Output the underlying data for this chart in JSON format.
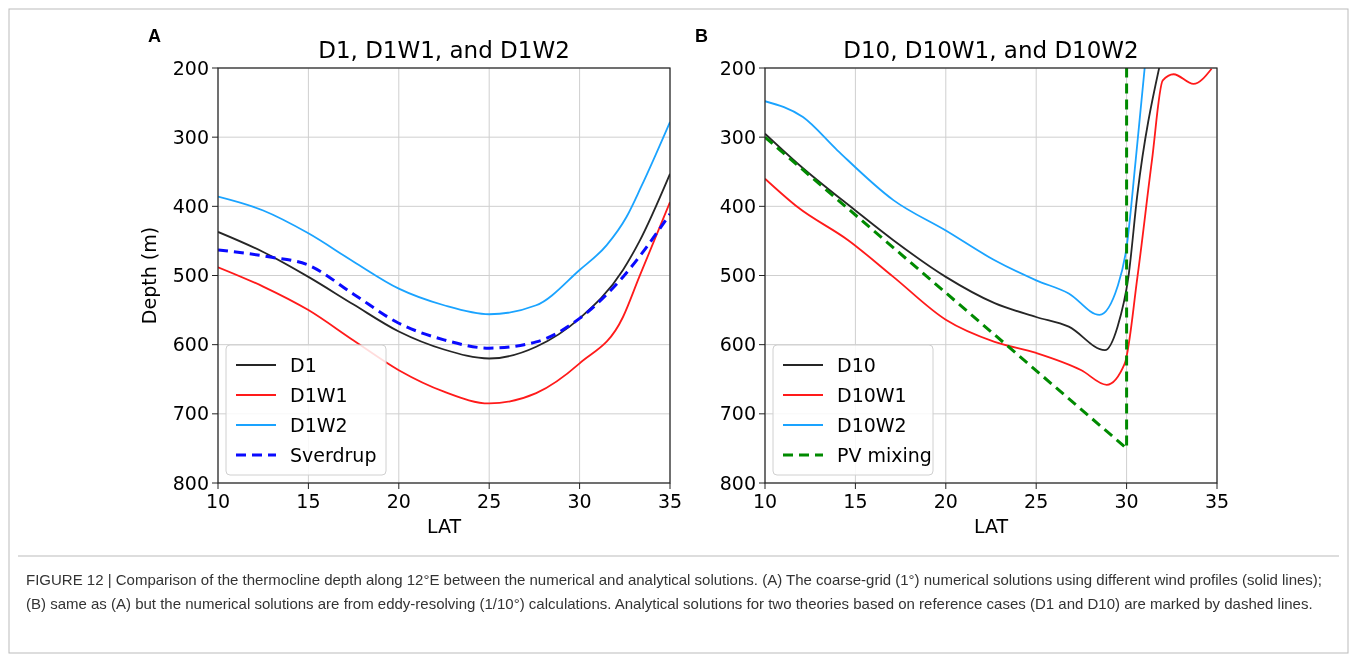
{
  "chart_data": [
    {
      "type": "line",
      "title": "D1, D1W1, and D1W2",
      "xlabel": "LAT",
      "ylabel": "Depth (m)",
      "annotations": [
        "A",
        "FIGURE 12 | Comparison of the thermocline depth along 12°E between the numerical and analytical solutions. (A) The coarse-grid (1°) numerical solutions using different wind profiles (solid lines); (B) same as (A) but the numerical solutions are from eddy-resolving (1/10°) calculations. Analytical solutions for two theories based on reference cases (D1 and D10) are marked by dashed lines."
      ],
      "xlim": [
        10,
        35
      ],
      "xticks": [
        10,
        15,
        20,
        25,
        30,
        35
      ],
      "ylim": [
        800,
        200
      ],
      "yticks": [
        200,
        300,
        400,
        500,
        600,
        700,
        800
      ],
      "grid": true,
      "legend": "bottom left",
      "line_style": "solid",
      "marker": "none",
      "series": [
        {
          "name": "D1",
          "color": "#262626",
          "x": [
            10,
            12.5,
            15,
            17.5,
            20,
            22.5,
            25,
            27.6,
            30,
            32.4,
            33.3,
            35
          ],
          "values": [
            437,
            466,
            502,
            542,
            581,
            607,
            620,
            603,
            562,
            492,
            451,
            353
          ]
        },
        {
          "name": "D1W1",
          "color": "#ff1a1a",
          "x": [
            10,
            12.5,
            15,
            17.5,
            20,
            22.5,
            25,
            27.6,
            30,
            32.4,
            33.3,
            35
          ],
          "values": [
            488,
            516,
            550,
            594,
            637,
            668,
            685,
            670,
            627,
            560,
            502,
            394
          ]
        },
        {
          "name": "D1W2",
          "color": "#1aa3ff",
          "x": [
            10,
            12.5,
            15,
            17.5,
            20,
            22.5,
            25,
            27.6,
            30,
            31.5,
            32.6,
            33.4,
            35
          ],
          "values": [
            386,
            406,
            439,
            480,
            519,
            543,
            556,
            543,
            492,
            456,
            415,
            372,
            278
          ]
        },
        {
          "name": "Sverdrup",
          "color": "#0a0aff",
          "line_style": "dashed",
          "x": [
            10,
            12.8,
            15,
            17.5,
            20,
            22.5,
            25,
            27.6,
            30,
            32.4,
            35
          ],
          "values": [
            463,
            473,
            485,
            527,
            569,
            593,
            605,
            596,
            562,
            502,
            411
          ]
        }
      ]
    },
    {
      "type": "line",
      "title": "D10, D10W1, and D10W2",
      "xlabel": "LAT",
      "annotations": [
        "B"
      ],
      "xlim": [
        10,
        35
      ],
      "xticks": [
        10,
        15,
        20,
        25,
        30,
        35
      ],
      "ylim": [
        800,
        200
      ],
      "yticks": [
        200,
        300,
        400,
        500,
        600,
        700,
        800
      ],
      "grid": true,
      "legend": "bottom left",
      "line_style": "solid",
      "marker": "none",
      "series": [
        {
          "name": "D10",
          "color": "#262626",
          "x": [
            10,
            11.8,
            15,
            17.1,
            20,
            22.7,
            25,
            26.8,
            28.8,
            29.5,
            30.1,
            30.6,
            31.8
          ],
          "values": [
            295,
            338,
            406,
            449,
            502,
            540,
            560,
            574,
            608,
            574,
            502,
            382,
            200
          ]
        },
        {
          "name": "D10W1",
          "color": "#ff1a1a",
          "x": [
            10,
            11.8,
            14.6,
            17.1,
            20,
            22.7,
            25,
            27.5,
            28.9,
            29.9,
            30.6,
            31.4,
            32,
            32.6,
            33.7,
            34.7
          ],
          "values": [
            360,
            401,
            449,
            502,
            564,
            596,
            612,
            637,
            658,
            627,
            502,
            334,
            218,
            209,
            223,
            201
          ]
        },
        {
          "name": "D10W2",
          "color": "#1aa3ff",
          "x": [
            10,
            12.1,
            14,
            17.1,
            20,
            22.7,
            25,
            26.8,
            28.5,
            29.5,
            30,
            30.5,
            31
          ],
          "values": [
            248,
            271,
            319,
            391,
            435,
            478,
            507,
            526,
            557,
            516,
            459,
            334,
            200
          ]
        },
        {
          "name": "PV mixing",
          "color": "#008a00",
          "line_style": "dashed",
          "x": [
            10,
            30,
            30
          ],
          "values": [
            300,
            750,
            200
          ]
        }
      ]
    }
  ]
}
